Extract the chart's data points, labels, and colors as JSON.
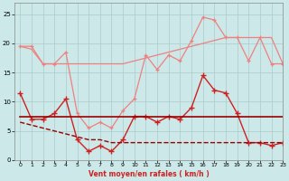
{
  "x": [
    0,
    1,
    2,
    3,
    4,
    5,
    6,
    7,
    8,
    9,
    10,
    11,
    12,
    13,
    14,
    15,
    16,
    17,
    18,
    19,
    20,
    21,
    22,
    23
  ],
  "gust_zigzag": [
    19.5,
    19.5,
    16.5,
    16.5,
    18.5,
    8.0,
    5.5,
    6.5,
    5.5,
    8.5,
    10.5,
    18.0,
    15.5,
    18.0,
    17.0,
    20.5,
    24.5,
    24.0,
    21.0,
    21.0,
    17.0,
    21.0,
    16.5,
    16.5
  ],
  "gust_smooth": [
    19.5,
    19.0,
    16.5,
    16.5,
    16.5,
    16.5,
    16.5,
    16.5,
    16.5,
    16.5,
    17.0,
    17.5,
    18.0,
    18.5,
    19.0,
    19.5,
    20.0,
    20.5,
    21.0,
    21.0,
    21.0,
    21.0,
    21.0,
    16.5
  ],
  "med_zigzag": [
    null,
    null,
    null,
    null,
    null,
    null,
    null,
    null,
    null,
    null,
    null,
    null,
    null,
    null,
    null,
    null,
    null,
    null,
    null,
    null,
    null,
    null,
    null,
    null
  ],
  "wind_avg": [
    11.5,
    7.0,
    7.0,
    8.0,
    10.5,
    3.5,
    1.5,
    2.5,
    1.5,
    3.5,
    7.5,
    7.5,
    6.5,
    7.5,
    7.0,
    9.0,
    14.5,
    12.0,
    11.5,
    8.0,
    3.0,
    3.0,
    2.5,
    3.0
  ],
  "flat_line": [
    7.5,
    7.5,
    7.5,
    7.5,
    7.5,
    7.5,
    7.5,
    7.5,
    7.5,
    7.5,
    7.5,
    7.5,
    7.5,
    7.5,
    7.5,
    7.5,
    7.5,
    7.5,
    7.5,
    7.5,
    7.5,
    7.5,
    7.5,
    7.5
  ],
  "decline_line": [
    6.5,
    6.0,
    5.5,
    5.0,
    4.5,
    4.0,
    3.5,
    3.5,
    3.0,
    3.0,
    3.0,
    3.0,
    3.0,
    3.0,
    3.0,
    3.0,
    3.0,
    3.0,
    3.0,
    3.0,
    3.0,
    3.0,
    3.0,
    3.0
  ],
  "bg_color": "#cce8e8",
  "grid_color": "#aacccc",
  "light_pink": "#f08080",
  "salmon": "#e06060",
  "dark_red": "#cc2222",
  "darkest_red": "#990000",
  "xlabel": "Vent moyen/en rafales ( km/h )",
  "ylim": [
    0,
    27
  ],
  "xlim": [
    -0.5,
    23
  ],
  "yticks": [
    0,
    5,
    10,
    15,
    20,
    25
  ],
  "xticks": [
    0,
    1,
    2,
    3,
    4,
    5,
    6,
    7,
    8,
    9,
    10,
    11,
    12,
    13,
    14,
    15,
    16,
    17,
    18,
    19,
    20,
    21,
    22,
    23
  ]
}
